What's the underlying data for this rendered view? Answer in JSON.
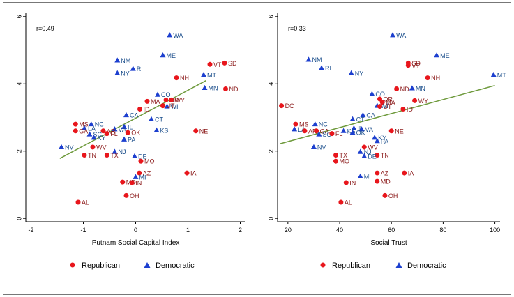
{
  "colors": {
    "republican": "#e8161c",
    "democratic": "#1c3fcf",
    "rep_label": "#8b1a1a",
    "dem_label": "#1c4f8c",
    "fit": "#6e9a3c"
  },
  "legend": {
    "republican": "Republican",
    "democratic": "Democratic"
  },
  "chart_data": [
    {
      "type": "scatter",
      "xlabel": "Putnam Social Capital Index",
      "ylabel": "",
      "annotation": "r=0.49",
      "xlim": [
        -2.1,
        2.1
      ],
      "ylim": [
        -0.1,
        6.1
      ],
      "xticks": [
        "-2",
        "-1",
        "0",
        "1",
        "2"
      ],
      "yticks": [
        "0",
        "2",
        "4",
        "6"
      ],
      "fit_line": {
        "x": [
          -1.45,
          1.35
        ],
        "y": [
          1.78,
          4.1
        ]
      },
      "points": [
        {
          "label": "WA",
          "x": 0.65,
          "y": 5.45,
          "party": "D"
        },
        {
          "label": "ME",
          "x": 0.52,
          "y": 4.85,
          "party": "D"
        },
        {
          "label": "NM",
          "x": -0.35,
          "y": 4.7,
          "party": "D"
        },
        {
          "label": "RI",
          "x": -0.05,
          "y": 4.45,
          "party": "D"
        },
        {
          "label": "NY",
          "x": -0.35,
          "y": 4.32,
          "party": "D"
        },
        {
          "label": "VT",
          "x": 1.42,
          "y": 4.58,
          "party": "R"
        },
        {
          "label": "SD",
          "x": 1.7,
          "y": 4.62,
          "party": "R"
        },
        {
          "label": "MT",
          "x": 1.3,
          "y": 4.27,
          "party": "D"
        },
        {
          "label": "NH",
          "x": 0.78,
          "y": 4.18,
          "party": "R"
        },
        {
          "label": "MN",
          "x": 1.32,
          "y": 3.88,
          "party": "D"
        },
        {
          "label": "ND",
          "x": 1.72,
          "y": 3.85,
          "party": "R"
        },
        {
          "label": "CO",
          "x": 0.42,
          "y": 3.68,
          "party": "D"
        },
        {
          "label": "OR",
          "x": 0.58,
          "y": 3.52,
          "party": "R"
        },
        {
          "label": "WY",
          "x": 0.68,
          "y": 3.52,
          "party": "R"
        },
        {
          "label": "MA",
          "x": 0.22,
          "y": 3.48,
          "party": "R"
        },
        {
          "label": "WI",
          "x": 0.6,
          "y": 3.33,
          "party": "D"
        },
        {
          "label": "UT",
          "x": 0.52,
          "y": 3.35,
          "party": "R"
        },
        {
          "label": "ID",
          "x": 0.08,
          "y": 3.25,
          "party": "R"
        },
        {
          "label": "CA",
          "x": -0.18,
          "y": 3.07,
          "party": "D"
        },
        {
          "label": "CT",
          "x": 0.3,
          "y": 2.95,
          "party": "D"
        },
        {
          "label": "NC",
          "x": -0.85,
          "y": 2.8,
          "party": "D"
        },
        {
          "label": "MS",
          "x": -1.15,
          "y": 2.8,
          "party": "R"
        },
        {
          "label": "KS",
          "x": 0.4,
          "y": 2.62,
          "party": "D"
        },
        {
          "label": "IL",
          "x": -0.22,
          "y": 2.72,
          "party": "D"
        },
        {
          "label": "VA",
          "x": -0.4,
          "y": 2.65,
          "party": "D"
        },
        {
          "label": "LA",
          "x": -0.98,
          "y": 2.68,
          "party": "D"
        },
        {
          "label": "GA",
          "x": -1.15,
          "y": 2.6,
          "party": "R"
        },
        {
          "label": "AR",
          "x": -0.62,
          "y": 2.6,
          "party": "R"
        },
        {
          "label": "NE",
          "x": 1.15,
          "y": 2.6,
          "party": "R"
        },
        {
          "label": "SC",
          "x": -0.88,
          "y": 2.5,
          "party": "D"
        },
        {
          "label": "OK",
          "x": -0.15,
          "y": 2.55,
          "party": "R"
        },
        {
          "label": "FL",
          "x": -0.55,
          "y": 2.52,
          "party": "R"
        },
        {
          "label": "KY",
          "x": -0.8,
          "y": 2.4,
          "party": "D"
        },
        {
          "label": "PA",
          "x": -0.22,
          "y": 2.35,
          "party": "D"
        },
        {
          "label": "NV",
          "x": -1.42,
          "y": 2.12,
          "party": "D"
        },
        {
          "label": "WV",
          "x": -0.82,
          "y": 2.12,
          "party": "R"
        },
        {
          "label": "NJ",
          "x": -0.4,
          "y": 1.98,
          "party": "D"
        },
        {
          "label": "TN",
          "x": -0.98,
          "y": 1.88,
          "party": "R"
        },
        {
          "label": "TX",
          "x": -0.55,
          "y": 1.88,
          "party": "R"
        },
        {
          "label": "DE",
          "x": -0.02,
          "y": 1.85,
          "party": "D"
        },
        {
          "label": "MO",
          "x": 0.1,
          "y": 1.7,
          "party": "R"
        },
        {
          "label": "IA",
          "x": 0.98,
          "y": 1.35,
          "party": "R"
        },
        {
          "label": "AZ",
          "x": 0.07,
          "y": 1.35,
          "party": "R"
        },
        {
          "label": "MI",
          "x": 0.0,
          "y": 1.23,
          "party": "D"
        },
        {
          "label": "MD",
          "x": -0.25,
          "y": 1.08,
          "party": "R"
        },
        {
          "label": "IN",
          "x": -0.07,
          "y": 1.06,
          "party": "R"
        },
        {
          "label": "OH",
          "x": -0.18,
          "y": 0.68,
          "party": "R"
        },
        {
          "label": "AL",
          "x": -1.1,
          "y": 0.48,
          "party": "R"
        }
      ]
    },
    {
      "type": "scatter",
      "xlabel": "Social Trust",
      "ylabel": "",
      "annotation": "r=0.33",
      "xlim": [
        16,
        102
      ],
      "ylim": [
        -0.1,
        6.1
      ],
      "xticks": [
        "20",
        "40",
        "60",
        "80",
        "100"
      ],
      "yticks": [
        "0",
        "2",
        "4",
        "6"
      ],
      "fit_line": {
        "x": [
          17,
          100
        ],
        "y": [
          2.22,
          3.95
        ]
      },
      "points": [
        {
          "label": "WA",
          "x": 60.5,
          "y": 5.45,
          "party": "D"
        },
        {
          "label": "ME",
          "x": 77.5,
          "y": 4.85,
          "party": "D"
        },
        {
          "label": "MT",
          "x": 99.5,
          "y": 4.27,
          "party": "D"
        },
        {
          "label": "NM",
          "x": 28,
          "y": 4.72,
          "party": "D"
        },
        {
          "label": "RI",
          "x": 33,
          "y": 4.47,
          "party": "D"
        },
        {
          "label": "NY",
          "x": 44.5,
          "y": 4.32,
          "party": "D"
        },
        {
          "label": "SD",
          "x": 66.5,
          "y": 4.62,
          "party": "R"
        },
        {
          "label": "VT",
          "x": 66.5,
          "y": 4.55,
          "party": "R"
        },
        {
          "label": "NH",
          "x": 74,
          "y": 4.18,
          "party": "R"
        },
        {
          "label": "ND",
          "x": 62,
          "y": 3.85,
          "party": "R"
        },
        {
          "label": "MN",
          "x": 68,
          "y": 3.87,
          "party": "D"
        },
        {
          "label": "CO",
          "x": 52.5,
          "y": 3.7,
          "party": "D"
        },
        {
          "label": "OR",
          "x": 55.5,
          "y": 3.55,
          "party": "R"
        },
        {
          "label": "MA",
          "x": 56.5,
          "y": 3.45,
          "party": "R"
        },
        {
          "label": "WI",
          "x": 54.5,
          "y": 3.35,
          "party": "D"
        },
        {
          "label": "UT",
          "x": 55.5,
          "y": 3.33,
          "party": "R"
        },
        {
          "label": "WY",
          "x": 69,
          "y": 3.5,
          "party": "R"
        },
        {
          "label": "ID",
          "x": 64.5,
          "y": 3.25,
          "party": "R"
        },
        {
          "label": "DC",
          "x": 17.5,
          "y": 3.35,
          "party": "R"
        },
        {
          "label": "CA",
          "x": 49,
          "y": 3.07,
          "party": "D"
        },
        {
          "label": "CT",
          "x": 45,
          "y": 2.95,
          "party": "D"
        },
        {
          "label": "MS",
          "x": 23,
          "y": 2.8,
          "party": "R"
        },
        {
          "label": "NC",
          "x": 30.5,
          "y": 2.8,
          "party": "D"
        },
        {
          "label": "LA",
          "x": 22.5,
          "y": 2.65,
          "party": "D"
        },
        {
          "label": "IL",
          "x": 45.5,
          "y": 2.68,
          "party": "D"
        },
        {
          "label": "VA",
          "x": 48.5,
          "y": 2.65,
          "party": "D"
        },
        {
          "label": "AR",
          "x": 26.5,
          "y": 2.6,
          "party": "R"
        },
        {
          "label": "GA",
          "x": 31,
          "y": 2.6,
          "party": "R"
        },
        {
          "label": "NE",
          "x": 60,
          "y": 2.6,
          "party": "R"
        },
        {
          "label": "SC",
          "x": 32,
          "y": 2.5,
          "party": "D"
        },
        {
          "label": "FL",
          "x": 37,
          "y": 2.52,
          "party": "R"
        },
        {
          "label": "KS",
          "x": 41.5,
          "y": 2.6,
          "party": "D"
        },
        {
          "label": "OK",
          "x": 45,
          "y": 2.55,
          "party": "D"
        },
        {
          "label": "KY",
          "x": 53.5,
          "y": 2.4,
          "party": "D"
        },
        {
          "label": "PA",
          "x": 54.5,
          "y": 2.3,
          "party": "D"
        },
        {
          "label": "NV",
          "x": 30,
          "y": 2.12,
          "party": "D"
        },
        {
          "label": "WV",
          "x": 49.5,
          "y": 2.12,
          "party": "R"
        },
        {
          "label": "NJ",
          "x": 48,
          "y": 1.98,
          "party": "D"
        },
        {
          "label": "TX",
          "x": 38.5,
          "y": 1.88,
          "party": "R"
        },
        {
          "label": "TN",
          "x": 54.5,
          "y": 1.88,
          "party": "R"
        },
        {
          "label": "DE",
          "x": 49.5,
          "y": 1.85,
          "party": "D"
        },
        {
          "label": "MO",
          "x": 38.5,
          "y": 1.7,
          "party": "R"
        },
        {
          "label": "AZ",
          "x": 54.5,
          "y": 1.35,
          "party": "R"
        },
        {
          "label": "IA",
          "x": 65,
          "y": 1.35,
          "party": "R"
        },
        {
          "label": "MI",
          "x": 48,
          "y": 1.25,
          "party": "D"
        },
        {
          "label": "MD",
          "x": 54.5,
          "y": 1.1,
          "party": "R"
        },
        {
          "label": "IN",
          "x": 42.5,
          "y": 1.06,
          "party": "R"
        },
        {
          "label": "OH",
          "x": 57.5,
          "y": 0.68,
          "party": "R"
        },
        {
          "label": "AL",
          "x": 40.5,
          "y": 0.48,
          "party": "R"
        }
      ]
    }
  ]
}
